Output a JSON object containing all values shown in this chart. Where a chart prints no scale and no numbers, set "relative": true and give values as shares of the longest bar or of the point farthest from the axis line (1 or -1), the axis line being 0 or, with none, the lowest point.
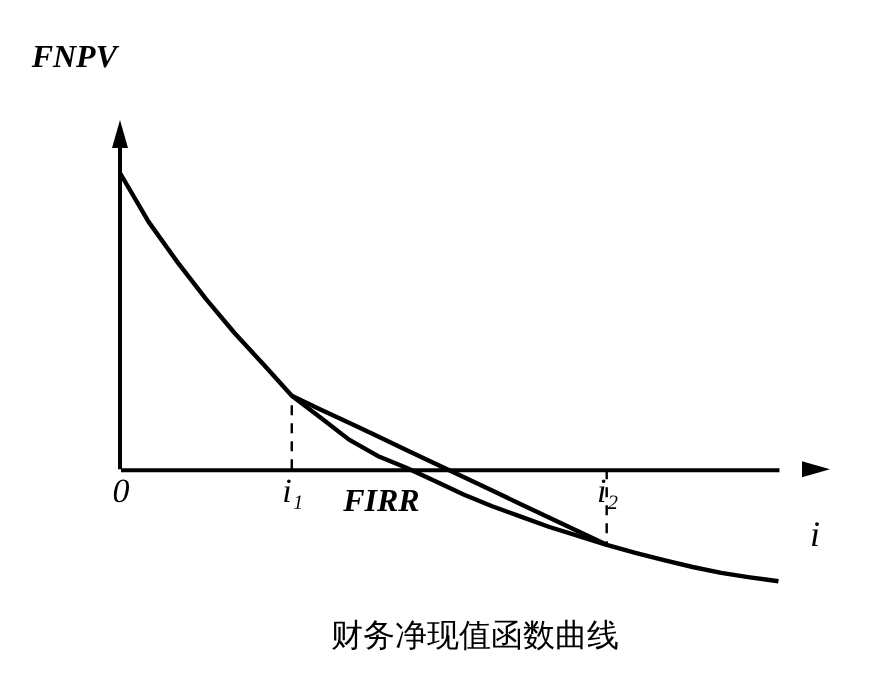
{
  "chart_data": {
    "type": "line",
    "title": "财务净现值函数曲线",
    "xlabel": "i",
    "ylabel": "FNPV",
    "relative": true,
    "grid": false,
    "legend": false,
    "marker": "none",
    "line_style": "solid",
    "categories": [
      "0",
      null,
      null,
      null,
      null,
      null,
      "i₁",
      null,
      null,
      null,
      null,
      null,
      null,
      null,
      null,
      null,
      null,
      "i₂",
      null,
      null,
      null,
      null,
      null,
      null
    ],
    "annotations": [
      {
        "text": "FIRR",
        "y": 0
      }
    ],
    "ref_lines": [
      {
        "axis": "x",
        "value": "i₁",
        "line_style": "dashed",
        "color": "#000000"
      },
      {
        "axis": "x",
        "value": "i₂",
        "line_style": "dashed",
        "color": "#000000"
      }
    ],
    "series": [
      {
        "color": "#000000",
        "values": [
          1.0,
          0.835,
          0.7,
          0.575,
          0.46,
          0.355,
          0.248,
          0.175,
          0.1,
          0.045,
          0.005,
          -0.04,
          -0.085,
          -0.125,
          -0.16,
          -0.195,
          -0.225,
          -0.255,
          -0.282,
          -0.307,
          -0.33,
          -0.35,
          -0.365,
          -0.378
        ]
      },
      {
        "color": "#000000",
        "values": [
          null,
          null,
          null,
          null,
          null,
          null,
          0.248,
          0.202,
          0.157,
          0.111,
          0.065,
          0.019,
          -0.026,
          -0.072,
          -0.118,
          -0.164,
          -0.209,
          -0.255,
          null,
          null,
          null,
          null,
          null,
          null
        ]
      }
    ]
  }
}
